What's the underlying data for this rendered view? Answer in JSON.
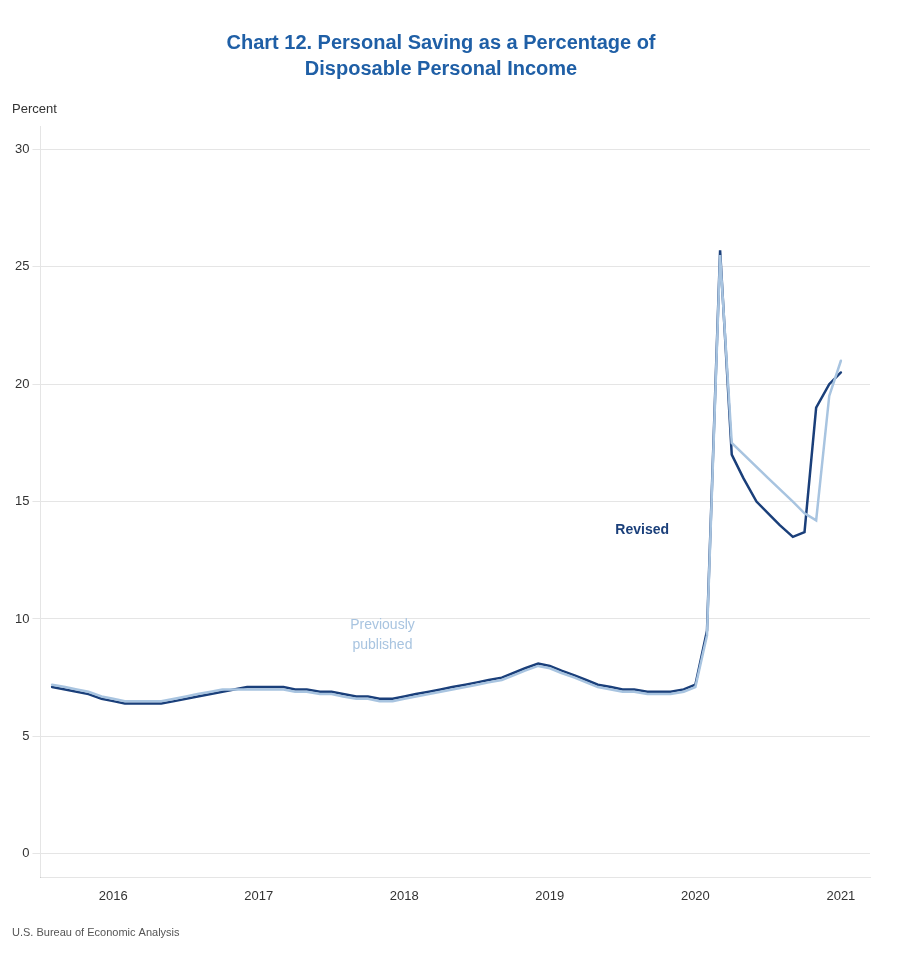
{
  "chart_data": {
    "type": "line",
    "title": "Chart 12. Personal Saving as a Percentage of\nDisposable Personal Income",
    "title_color": "#1F5FA6",
    "ylabel": "Percent",
    "source": "U.S. Bureau of Economic Analysis",
    "xlim": [
      2015.5,
      2021.2
    ],
    "xticks": [
      2016,
      2017,
      2018,
      2019,
      2020,
      2021
    ],
    "ylim": [
      -1,
      31
    ],
    "yticks": [
      0,
      5,
      10,
      15,
      20,
      25,
      30
    ],
    "grid": "y",
    "series": [
      {
        "color": "#A8C4E0",
        "x": [
          2015.58,
          2015.67,
          2015.75,
          2015.83,
          2015.92,
          2016.0,
          2016.08,
          2016.17,
          2016.25,
          2016.33,
          2016.42,
          2016.5,
          2016.58,
          2016.67,
          2016.75,
          2016.83,
          2016.92,
          2017.0,
          2017.08,
          2017.17,
          2017.25,
          2017.33,
          2017.42,
          2017.5,
          2017.58,
          2017.67,
          2017.75,
          2017.83,
          2017.92,
          2018.0,
          2018.08,
          2018.17,
          2018.25,
          2018.33,
          2018.42,
          2018.5,
          2018.58,
          2018.67,
          2018.75,
          2018.83,
          2018.92,
          2019.0,
          2019.08,
          2019.17,
          2019.25,
          2019.33,
          2019.42,
          2019.5,
          2019.58,
          2019.67,
          2019.75,
          2019.83,
          2019.92,
          2020.0,
          2020.08,
          2020.17,
          2020.25,
          2020.5,
          2020.67,
          2020.75,
          2020.83,
          2020.92,
          2021.0
        ],
        "values": [
          7.2,
          7.1,
          7.0,
          6.9,
          6.7,
          6.6,
          6.5,
          6.5,
          6.5,
          6.5,
          6.6,
          6.7,
          6.8,
          6.9,
          7.0,
          7.0,
          7.0,
          7.0,
          7.0,
          7.0,
          6.9,
          6.9,
          6.8,
          6.8,
          6.7,
          6.6,
          6.6,
          6.5,
          6.5,
          6.6,
          6.7,
          6.8,
          6.9,
          7.0,
          7.1,
          7.2,
          7.3,
          7.4,
          7.6,
          7.8,
          8.0,
          7.9,
          7.7,
          7.5,
          7.3,
          7.1,
          7.0,
          6.9,
          6.9,
          6.8,
          6.8,
          6.8,
          6.9,
          7.1,
          9.3,
          25.5,
          17.5,
          16.0,
          15.0,
          14.5,
          14.2,
          19.5,
          21.0
        ]
      },
      {
        "color": "#1A3F7A",
        "x": [
          2015.58,
          2015.67,
          2015.75,
          2015.83,
          2015.92,
          2016.0,
          2016.08,
          2016.17,
          2016.25,
          2016.33,
          2016.42,
          2016.5,
          2016.58,
          2016.67,
          2016.75,
          2016.83,
          2016.92,
          2017.0,
          2017.08,
          2017.17,
          2017.25,
          2017.33,
          2017.42,
          2017.5,
          2017.58,
          2017.67,
          2017.75,
          2017.83,
          2017.92,
          2018.0,
          2018.08,
          2018.17,
          2018.25,
          2018.33,
          2018.42,
          2018.5,
          2018.58,
          2018.67,
          2018.75,
          2018.83,
          2018.92,
          2019.0,
          2019.08,
          2019.17,
          2019.25,
          2019.33,
          2019.42,
          2019.5,
          2019.58,
          2019.67,
          2019.75,
          2019.83,
          2019.92,
          2020.0,
          2020.08,
          2020.17,
          2020.25,
          2020.33,
          2020.42,
          2020.5,
          2020.58,
          2020.67,
          2020.75,
          2020.83,
          2020.92,
          2021.0
        ],
        "values": [
          7.1,
          7.0,
          6.9,
          6.8,
          6.6,
          6.5,
          6.4,
          6.4,
          6.4,
          6.4,
          6.5,
          6.6,
          6.7,
          6.8,
          6.9,
          7.0,
          7.1,
          7.1,
          7.1,
          7.1,
          7.0,
          7.0,
          6.9,
          6.9,
          6.8,
          6.7,
          6.7,
          6.6,
          6.6,
          6.7,
          6.8,
          6.9,
          7.0,
          7.1,
          7.2,
          7.3,
          7.4,
          7.5,
          7.7,
          7.9,
          8.1,
          8.0,
          7.8,
          7.6,
          7.4,
          7.2,
          7.1,
          7.0,
          7.0,
          6.9,
          6.9,
          6.9,
          7.0,
          7.2,
          9.5,
          25.7,
          17.0,
          16.0,
          15.0,
          14.5,
          14.0,
          13.5,
          13.7,
          19.0,
          20.0,
          20.5
        ]
      }
    ],
    "annotations": [
      {
        "text": "Revised",
        "x": 2019.45,
        "y": 13.8,
        "color": "#1A3F7A",
        "align": "left"
      },
      {
        "text": "Previously\npublished",
        "x": 2017.85,
        "y": 9.3,
        "color": "#A8C4E0",
        "align": "center"
      }
    ]
  }
}
